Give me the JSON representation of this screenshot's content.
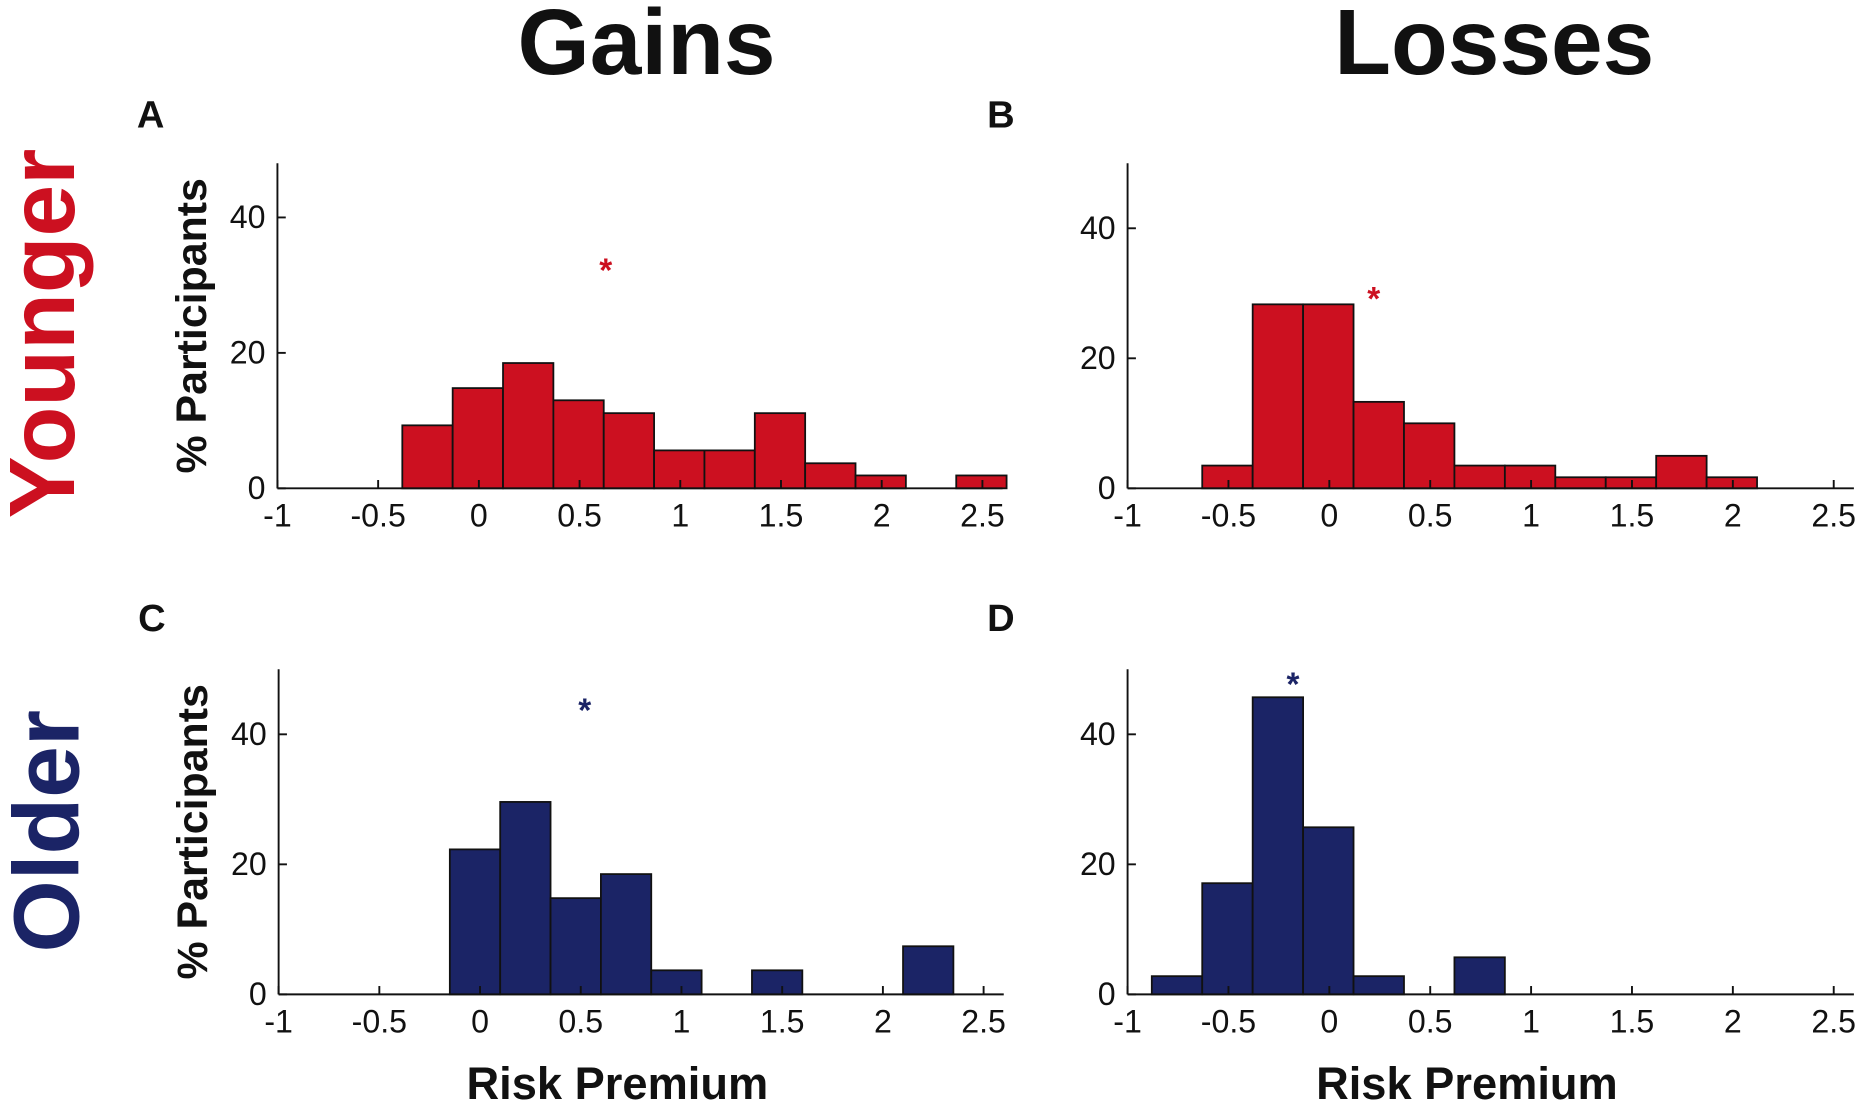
{
  "column_titles": [
    "Gains",
    "Losses"
  ],
  "row_titles": [
    "Younger",
    "Older"
  ],
  "row_colors": [
    "#cc1020",
    "#1b2466"
  ],
  "chart_data": [
    {
      "type": "histogram",
      "panel": "A",
      "ylabel": "% Participants",
      "color": "#cc1020",
      "bins": [
        -0.38,
        -0.13,
        0.12,
        0.37,
        0.62,
        0.87,
        1.12,
        1.37,
        1.62,
        1.87,
        2.12,
        2.37,
        2.62
      ],
      "values": [
        9.3,
        14.8,
        18.5,
        13,
        11.1,
        5.6,
        5.6,
        11.1,
        3.7,
        1.9,
        0,
        1.9
      ],
      "xlim": [
        -1,
        2.6
      ],
      "ylim": [
        0,
        48
      ],
      "xticks": [
        -1,
        -0.5,
        0,
        0.5,
        1,
        1.5,
        2,
        2.5
      ],
      "yticks": [
        0,
        20,
        40
      ],
      "annotations": [
        {
          "text": "*",
          "x": 0.63,
          "y": 33
        }
      ]
    },
    {
      "type": "histogram",
      "panel": "B",
      "color": "#cc1020",
      "bins": [
        -0.63,
        -0.38,
        -0.13,
        0.12,
        0.37,
        0.62,
        0.87,
        1.12,
        1.37,
        1.62,
        1.87,
        2.12
      ],
      "values": [
        3.5,
        28.3,
        28.3,
        13.3,
        10,
        3.5,
        3.5,
        1.7,
        1.7,
        5,
        1.7
      ],
      "xlim": [
        -1,
        2.6
      ],
      "ylim": [
        0,
        50
      ],
      "xticks": [
        -1,
        -0.5,
        0,
        0.5,
        1,
        1.5,
        2,
        2.5
      ],
      "yticks": [
        0,
        20,
        40
      ],
      "annotations": [
        {
          "text": "*",
          "x": 0.22,
          "y": 30
        }
      ]
    },
    {
      "type": "histogram",
      "panel": "C",
      "ylabel": "% Participants",
      "xlabel": "Risk Premium",
      "color": "#1b2466",
      "bins": [
        -0.15,
        0.1,
        0.35,
        0.6,
        0.85,
        1.1,
        1.35,
        1.6,
        1.85,
        2.1,
        2.35
      ],
      "values": [
        22.3,
        29.6,
        14.8,
        18.5,
        3.7,
        0,
        3.7,
        0,
        0,
        7.4
      ],
      "xlim": [
        -1,
        2.6
      ],
      "ylim": [
        0,
        50
      ],
      "xticks": [
        -1,
        -0.5,
        0,
        0.5,
        1,
        1.5,
        2,
        2.5
      ],
      "yticks": [
        0,
        20,
        40
      ],
      "annotations": [
        {
          "text": "*",
          "x": 0.52,
          "y": 44.5
        }
      ]
    },
    {
      "type": "histogram",
      "panel": "D",
      "xlabel": "Risk Premium",
      "color": "#1b2466",
      "bins": [
        -0.88,
        -0.63,
        -0.38,
        -0.13,
        0.12,
        0.37,
        0.62,
        0.87
      ],
      "values": [
        2.8,
        17.1,
        45.7,
        25.7,
        2.8,
        0,
        5.7
      ],
      "xlim": [
        -1,
        2.6
      ],
      "ylim": [
        0,
        50
      ],
      "xticks": [
        -1,
        -0.5,
        0,
        0.5,
        1,
        1.5,
        2,
        2.5
      ],
      "yticks": [
        0,
        20,
        40
      ],
      "annotations": [
        {
          "text": "*",
          "x": -0.18,
          "y": 48.5
        }
      ]
    }
  ]
}
